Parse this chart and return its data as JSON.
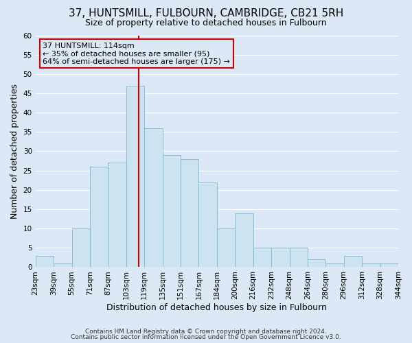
{
  "title": "37, HUNTSMILL, FULBOURN, CAMBRIDGE, CB21 5RH",
  "subtitle": "Size of property relative to detached houses in Fulbourn",
  "xlabel": "Distribution of detached houses by size in Fulbourn",
  "ylabel": "Number of detached properties",
  "footnote1": "Contains HM Land Registry data © Crown copyright and database right 2024.",
  "footnote2": "Contains public sector information licensed under the Open Government Licence v3.0.",
  "bin_labels": [
    "23sqm",
    "39sqm",
    "55sqm",
    "71sqm",
    "87sqm",
    "103sqm",
    "119sqm",
    "135sqm",
    "151sqm",
    "167sqm",
    "184sqm",
    "200sqm",
    "216sqm",
    "232sqm",
    "248sqm",
    "264sqm",
    "280sqm",
    "296sqm",
    "312sqm",
    "328sqm",
    "344sqm"
  ],
  "bar_heights": [
    3,
    1,
    10,
    26,
    27,
    47,
    36,
    29,
    28,
    22,
    10,
    14,
    5,
    5,
    5,
    2,
    1,
    3,
    1,
    1,
    0
  ],
  "bar_color": "#cde4f0",
  "bar_edge_color": "#7ab8d4",
  "marker_color": "#cc0000",
  "annotation_line1": "37 HUNTSMILL: 114sqm",
  "annotation_line2": "← 35% of detached houses are smaller (95)",
  "annotation_line3": "64% of semi-detached houses are larger (175) →",
  "annotation_box_color": "#cc0000",
  "ylim": [
    0,
    60
  ],
  "yticks": [
    0,
    5,
    10,
    15,
    20,
    25,
    30,
    35,
    40,
    45,
    50,
    55,
    60
  ],
  "bg_color": "#dce8f5",
  "grid_color": "#ffffff",
  "title_fontsize": 11,
  "subtitle_fontsize": 9,
  "axis_label_fontsize": 9,
  "tick_fontsize": 7.5,
  "footnote_fontsize": 6.5
}
